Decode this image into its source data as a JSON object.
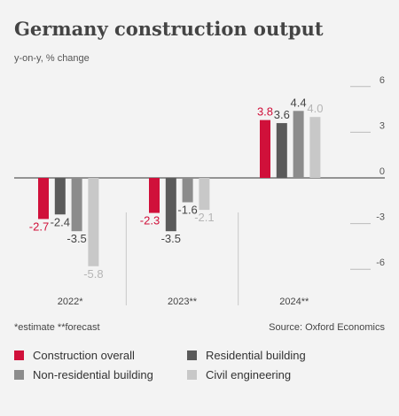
{
  "chart_data": {
    "type": "bar",
    "title": "Germany construction output",
    "subtitle": "y-on-y, % change",
    "categories": [
      "2022*",
      "2023**",
      "2024**"
    ],
    "series": [
      {
        "name": "Construction overall",
        "color": "#d0103a",
        "values": [
          -2.7,
          -2.3,
          3.8
        ]
      },
      {
        "name": "Residential building",
        "color": "#5a5a5a",
        "values": [
          -2.4,
          -3.5,
          3.6
        ]
      },
      {
        "name": "Non-residential building",
        "color": "#8c8c8c",
        "values": [
          -3.5,
          -1.6,
          4.4
        ]
      },
      {
        "name": "Civil engineering",
        "color": "#c8c8c8",
        "values": [
          -5.8,
          -2.1,
          4.0
        ]
      }
    ],
    "yticks": [
      6,
      3,
      0,
      -3,
      -6
    ],
    "ylim": [
      -6,
      6
    ],
    "yaxis_position": "right",
    "legend_position": "bottom"
  },
  "footnote": "*estimate  **forecast",
  "source": "Source: Oxford Economics"
}
